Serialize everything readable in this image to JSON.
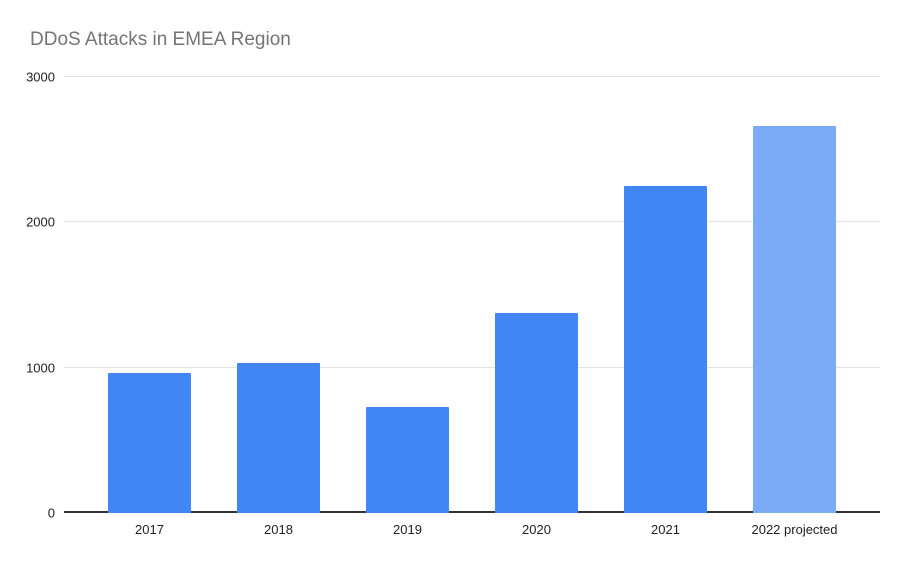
{
  "chart_data": {
    "type": "bar",
    "title": "DDoS Attacks in EMEA Region",
    "categories": [
      "2017",
      "2018",
      "2019",
      "2020",
      "2021",
      "2022 projected"
    ],
    "values": [
      960,
      1030,
      730,
      1375,
      2250,
      2665
    ],
    "bar_colors": [
      "#4285f4",
      "#4285f4",
      "#4285f4",
      "#4285f4",
      "#4285f4",
      "#7baaf7"
    ],
    "xlabel": "",
    "ylabel": "",
    "ylim": [
      0,
      3000
    ],
    "yticks": [
      0,
      1000,
      2000,
      3000
    ],
    "grid": true,
    "legend": "none",
    "colors": {
      "bar": "#4285f4",
      "bar_projected": "#7baaf7",
      "gridline": "#e2e2e2",
      "axis_line": "#333333",
      "title_text": "#757575",
      "tick_text": "#222222",
      "background": "#ffffff"
    }
  }
}
